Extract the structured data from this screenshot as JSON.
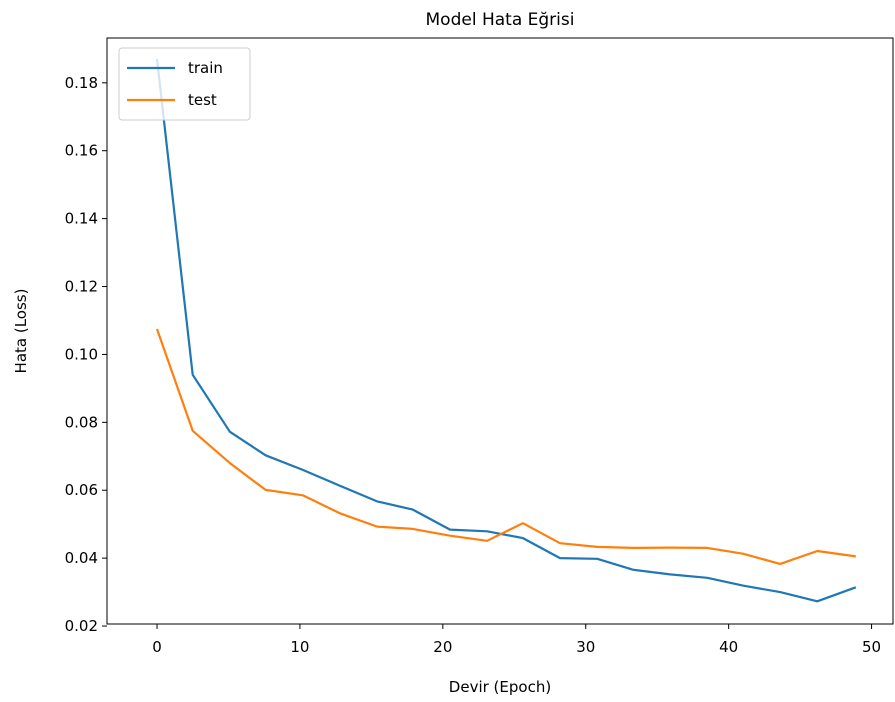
{
  "chart_data": {
    "type": "line",
    "title": "Model Hata Eğrisi",
    "xlabel": "Devir (Epoch)",
    "ylabel": "Hata (Loss)",
    "xlim": [
      -3.5,
      51.5
    ],
    "ylim": [
      0.0206,
      0.1932
    ],
    "xticks": [
      0,
      10,
      20,
      30,
      40,
      50
    ],
    "yticks": [
      0.02,
      0.04,
      0.06,
      0.08,
      0.1,
      0.12,
      0.14,
      0.16,
      0.18
    ],
    "ytick_labels": [
      "0.02",
      "0.04",
      "0.06",
      "0.08",
      "0.10",
      "0.12",
      "0.14",
      "0.16",
      "0.18"
    ],
    "grid": false,
    "legend_position": "top-left",
    "series": [
      {
        "name": "train",
        "color": "#1f77b4",
        "x": [
          0,
          2.5,
          5.1,
          7.6,
          10.2,
          12.8,
          15.4,
          17.9,
          20.5,
          23.1,
          25.6,
          28.2,
          30.8,
          33.3,
          35.9,
          38.5,
          41.0,
          43.6,
          46.2,
          48.9
        ],
        "y": [
          0.187,
          0.094,
          0.0772,
          0.0703,
          0.066,
          0.0613,
          0.0567,
          0.0543,
          0.0484,
          0.0479,
          0.0459,
          0.04,
          0.0398,
          0.0366,
          0.0352,
          0.0342,
          0.0319,
          0.03,
          0.0273,
          0.0314
        ]
      },
      {
        "name": "test",
        "color": "#ff7f0e",
        "x": [
          0,
          2.5,
          5.1,
          7.6,
          10.2,
          12.8,
          15.4,
          17.9,
          20.5,
          23.1,
          25.6,
          28.2,
          30.8,
          33.3,
          35.9,
          38.5,
          41.0,
          43.6,
          46.2,
          48.9
        ],
        "y": [
          0.1075,
          0.0775,
          0.068,
          0.0601,
          0.0585,
          0.0532,
          0.0493,
          0.0486,
          0.0466,
          0.0451,
          0.0503,
          0.0444,
          0.0433,
          0.043,
          0.0431,
          0.043,
          0.0413,
          0.0383,
          0.0421,
          0.0405
        ]
      }
    ]
  }
}
